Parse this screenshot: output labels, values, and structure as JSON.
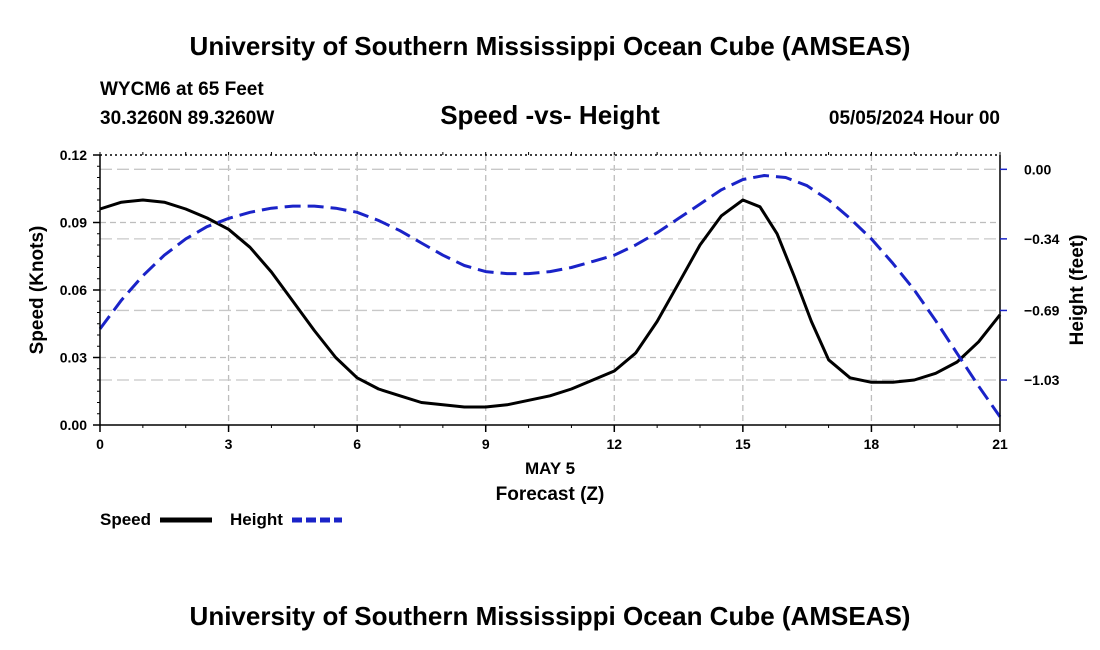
{
  "header": {
    "title": "University of Southern Mississippi Ocean Cube (AMSEAS)",
    "station": "WYCM6 at 65 Feet",
    "coords": "30.3260N  89.3260W",
    "date": "05/05/2024 Hour 00"
  },
  "footer": {
    "title": "University of Southern Mississippi Ocean Cube (AMSEAS)"
  },
  "chart_data": {
    "type": "line",
    "title": "Speed -vs- Height",
    "xlabel": "Forecast (Z)",
    "xdate": "MAY 5",
    "ylabel_left": "Speed (Knots)",
    "ylabel_right": "Height (feet)",
    "xlim": [
      0,
      21
    ],
    "ylim_left": [
      0,
      0.12
    ],
    "ylim_right": [
      -1.25,
      0.07
    ],
    "grid": true,
    "x_ticks": [
      "0",
      "3",
      "6",
      "9",
      "12",
      "15",
      "18",
      "21"
    ],
    "y_left_ticks": [
      "0.00",
      "0.03",
      "0.06",
      "0.09",
      "0.12"
    ],
    "y_right_ticks": [
      "0.00",
      "−0.34",
      "−0.69",
      "−1.03"
    ],
    "series": [
      {
        "name": "Speed",
        "axis": "left",
        "color": "#000000",
        "dash": "solid",
        "x": [
          0,
          0.5,
          1,
          1.5,
          2,
          2.5,
          3,
          3.5,
          4,
          4.5,
          5,
          5.5,
          6,
          6.5,
          7,
          7.5,
          8,
          8.5,
          9,
          9.5,
          10,
          10.5,
          11,
          11.5,
          12,
          12.5,
          13,
          13.5,
          14,
          14.5,
          15,
          15.4,
          15.8,
          16.2,
          16.6,
          17,
          17.5,
          18,
          18.5,
          19,
          19.5,
          20,
          20.5,
          21
        ],
        "values": [
          0.096,
          0.099,
          0.1,
          0.099,
          0.096,
          0.092,
          0.087,
          0.079,
          0.068,
          0.055,
          0.042,
          0.03,
          0.021,
          0.016,
          0.013,
          0.01,
          0.009,
          0.008,
          0.008,
          0.009,
          0.011,
          0.013,
          0.016,
          0.02,
          0.024,
          0.032,
          0.046,
          0.063,
          0.08,
          0.093,
          0.1,
          0.097,
          0.085,
          0.066,
          0.046,
          0.029,
          0.021,
          0.019,
          0.019,
          0.02,
          0.023,
          0.028,
          0.037,
          0.049
        ]
      },
      {
        "name": "Height",
        "axis": "right",
        "color": "#1a23c8",
        "dash": "dashed",
        "x": [
          0,
          0.5,
          1,
          1.5,
          2,
          2.5,
          3,
          3.5,
          4,
          4.5,
          5,
          5.5,
          6,
          6.5,
          7,
          7.5,
          8,
          8.5,
          9,
          9.5,
          10,
          10.5,
          11,
          11.5,
          12,
          12.5,
          13,
          13.5,
          14,
          14.5,
          15,
          15.5,
          16,
          16.5,
          17,
          17.5,
          18,
          18.5,
          19,
          19.5,
          20,
          20.5,
          21
        ],
        "values": [
          -0.78,
          -0.64,
          -0.52,
          -0.42,
          -0.34,
          -0.28,
          -0.24,
          -0.21,
          -0.19,
          -0.18,
          -0.18,
          -0.19,
          -0.21,
          -0.25,
          -0.3,
          -0.36,
          -0.42,
          -0.47,
          -0.5,
          -0.51,
          -0.51,
          -0.5,
          -0.48,
          -0.45,
          -0.42,
          -0.37,
          -0.31,
          -0.24,
          -0.17,
          -0.1,
          -0.05,
          -0.03,
          -0.04,
          -0.08,
          -0.15,
          -0.24,
          -0.34,
          -0.46,
          -0.59,
          -0.74,
          -0.9,
          -1.06,
          -1.21
        ]
      }
    ]
  },
  "legend": {
    "speed_label": "Speed",
    "height_label": "Height"
  }
}
